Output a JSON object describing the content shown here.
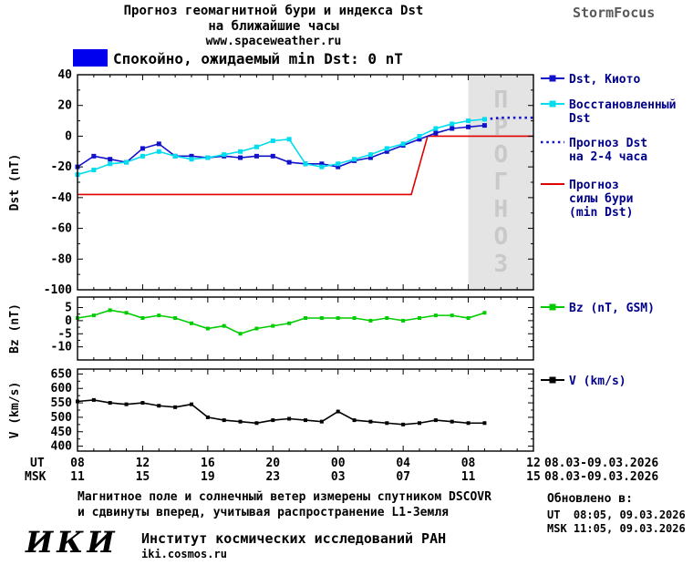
{
  "header": {
    "title_line1": "Прогноз геомагнитной бури и индекса Dst",
    "title_line2": "на ближайшие часы",
    "site": "www.spaceweather.ru",
    "brand": "StormFocus",
    "status_legend": "Спокойно, ожидаемый min Dst: 0 nT",
    "status_color": "#0000EE"
  },
  "chart_data": {
    "type": "line",
    "panels": [
      {
        "name": "dst",
        "ylabel": "Dst (nT)",
        "ylim": [
          -100,
          40
        ],
        "yticks": [
          40,
          20,
          0,
          -20,
          -40,
          -60,
          -80,
          -100
        ],
        "forecast_band": {
          "from_hour": 32,
          "to_hour": 36,
          "label": "ПРОГНОЗ"
        },
        "series": [
          {
            "name": "Dst, Киото",
            "color": "#1111CC",
            "style": "solid",
            "marker": "square",
            "x": [
              8,
              9,
              10,
              11,
              12,
              13,
              14,
              15,
              16,
              17,
              18,
              19,
              20,
              21,
              22,
              23,
              24,
              25,
              26,
              27,
              28,
              29,
              30,
              31,
              32,
              33
            ],
            "y": [
              -20,
              -13,
              -15,
              -17,
              -8,
              -5,
              -13,
              -13,
              -14,
              -13,
              -14,
              -13,
              -13,
              -17,
              -18,
              -18,
              -20,
              -16,
              -14,
              -10,
              -6,
              -2,
              2,
              5,
              6,
              7
            ]
          },
          {
            "name": "Восстановленный Dst",
            "color": "#00DDEE",
            "style": "solid",
            "marker": "square",
            "x": [
              8,
              9,
              10,
              11,
              12,
              13,
              14,
              15,
              16,
              17,
              18,
              19,
              20,
              21,
              22,
              23,
              24,
              25,
              26,
              27,
              28,
              29,
              30,
              31,
              32,
              33
            ],
            "y": [
              -25,
              -22,
              -18,
              -17,
              -13,
              -10,
              -13,
              -15,
              -14,
              -12,
              -10,
              -7,
              -3,
              -2,
              -18,
              -20,
              -18,
              -15,
              -12,
              -8,
              -5,
              0,
              5,
              8,
              10,
              11
            ]
          },
          {
            "name": "Прогноз Dst на 2-4 часа",
            "color": "#1111CC",
            "style": "dotted",
            "marker": null,
            "x": [
              33,
              34,
              35,
              36
            ],
            "y": [
              11,
              12,
              12,
              12
            ]
          },
          {
            "name": "Прогноз силы бури (min Dst)",
            "color": "#E00000",
            "style": "solid",
            "marker": null,
            "x": [
              8,
              28.5,
              29.5,
              36
            ],
            "y": [
              -38,
              -38,
              0,
              0
            ]
          }
        ]
      },
      {
        "name": "bz",
        "ylabel": "Bz (nT)",
        "ylim": [
          -15,
          9
        ],
        "yticks": [
          5,
          0,
          -5,
          -10
        ],
        "series": [
          {
            "name": "Bz (nT, GSM)",
            "color": "#00CC00",
            "style": "solid",
            "marker": "square",
            "x": [
              8,
              9,
              10,
              11,
              12,
              13,
              14,
              15,
              16,
              17,
              18,
              19,
              20,
              21,
              22,
              23,
              24,
              25,
              26,
              27,
              28,
              29,
              30,
              31,
              32,
              33
            ],
            "y": [
              1,
              2,
              4,
              3,
              1,
              2,
              1,
              -1,
              -3,
              -2,
              -5,
              -3,
              -2,
              -1,
              1,
              1,
              1,
              1,
              0,
              1,
              0,
              1,
              2,
              2,
              1,
              3
            ]
          }
        ]
      },
      {
        "name": "v",
        "ylabel": "V (km/s)",
        "ylim": [
          383,
          667
        ],
        "yticks": [
          650,
          600,
          550,
          500,
          450,
          400
        ],
        "series": [
          {
            "name": "V (km/s)",
            "color": "#000000",
            "style": "solid",
            "marker": "square",
            "x": [
              8,
              9,
              10,
              11,
              12,
              13,
              14,
              15,
              16,
              17,
              18,
              19,
              20,
              21,
              22,
              23,
              24,
              25,
              26,
              27,
              28,
              29,
              30,
              31,
              32,
              33
            ],
            "y": [
              555,
              560,
              550,
              545,
              550,
              540,
              535,
              545,
              500,
              490,
              485,
              480,
              490,
              495,
              490,
              485,
              520,
              490,
              485,
              480,
              475,
              480,
              490,
              485,
              480,
              480
            ]
          }
        ]
      }
    ],
    "xaxis": {
      "xlim": [
        8,
        36
      ],
      "ticks": [
        8,
        12,
        16,
        20,
        24,
        28,
        32,
        36
      ],
      "ut_prefix": "UT",
      "msk_prefix": "MSK",
      "ut_labels": [
        "08",
        "12",
        "16",
        "20",
        "00",
        "04",
        "08",
        "12"
      ],
      "msk_labels": [
        "11",
        "15",
        "19",
        "23",
        "03",
        "07",
        "11",
        "15"
      ],
      "ut_dates": "08.03-09.03.2026",
      "msk_dates": "08.03-09.03.2026"
    },
    "legend": [
      {
        "lines": [
          "Dst, Киото"
        ],
        "color": "#1111CC",
        "style": "line-marker"
      },
      {
        "lines": [
          "Восстановленный",
          "Dst"
        ],
        "color": "#00DDEE",
        "style": "line-marker"
      },
      {
        "lines": [
          "Прогноз Dst",
          "на 2-4 часа"
        ],
        "color": "#1111CC",
        "style": "dotted"
      },
      {
        "lines": [
          "Прогноз",
          "силы бури",
          "(min Dst)"
        ],
        "color": "#E00000",
        "style": "line"
      },
      {
        "lines": [
          "Bz (nT, GSM)"
        ],
        "color": "#00CC00",
        "style": "line-marker"
      },
      {
        "lines": [
          "V (km/s)"
        ],
        "color": "#000000",
        "style": "line-marker"
      }
    ]
  },
  "footer": {
    "note_line1": "Магнитное поле и солнечный ветер измерены спутником DSCOVR",
    "note_line2": "и сдвинуты вперед, учитывая распространение L1-Земля",
    "updated_label": "Обновлено в:",
    "updated_ut": "UT  08:05, 09.03.2026",
    "updated_msk": "MSK 11:05, 09.03.2026",
    "logo": "ИКИ",
    "org": "Институт космических исследований РАН",
    "org_site": "iki.cosmos.ru"
  }
}
